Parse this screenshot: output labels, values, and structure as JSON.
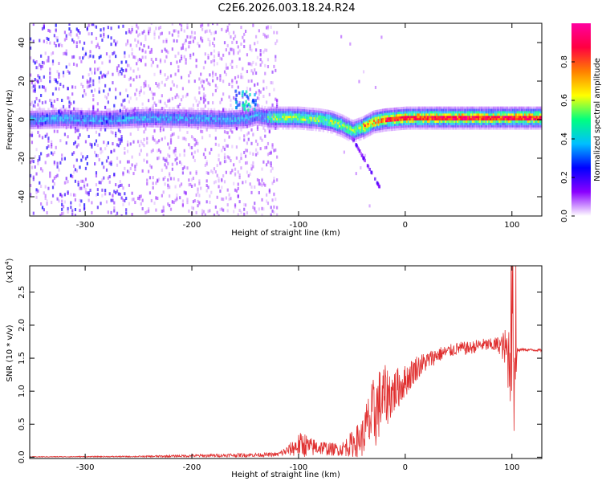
{
  "title": "C2E6.2026.003.18.24.R24",
  "chart_data": [
    {
      "type": "heatmap",
      "name": "spectrogram",
      "xlabel": "Height of straight line (km)",
      "ylabel": "Frequency (Hz)",
      "xlim": [
        -352,
        128
      ],
      "ylim": [
        -50,
        50
      ],
      "xticks": [
        -300,
        -200,
        -100,
        0,
        100
      ],
      "yticks": [
        -40,
        -20,
        0,
        20,
        40
      ],
      "ridge": {
        "x": [
          -352,
          -320,
          -280,
          -240,
          -200,
          -170,
          -150,
          -140,
          -130,
          -100,
          -80,
          -70,
          -60,
          -50,
          -40,
          -30,
          -20,
          0,
          20,
          50,
          80,
          95,
          100,
          110,
          128
        ],
        "freq": [
          0,
          0.5,
          0,
          1,
          0.5,
          0,
          0.5,
          2,
          1,
          1,
          0,
          -1,
          -3,
          -6,
          -4,
          -1,
          0,
          1,
          1,
          1,
          1,
          1,
          1,
          1,
          1
        ]
      },
      "features": [
        {
          "label": "burst",
          "x": [
            -160,
            -140
          ],
          "freq": [
            5,
            15
          ]
        },
        {
          "label": "diagonal",
          "x": [
            -50,
            -25
          ],
          "freq": [
            -10,
            -35
          ]
        }
      ],
      "colorbar": {
        "label": "Normalized spectral amplitude",
        "range": [
          0,
          1
        ],
        "ticks": [
          "0.0",
          "0.2",
          "0.4",
          "0.6",
          "0.8"
        ],
        "colors": [
          "#ffffff",
          "#8a00ff",
          "#0000ff",
          "#00bfff",
          "#00ff80",
          "#ffff00",
          "#ff8000",
          "#ff0040",
          "#ff00a0"
        ]
      }
    },
    {
      "type": "line",
      "name": "snr",
      "xlabel": "Height of straight line (km)",
      "ylabel": "SNR (10 * v/v)",
      "multiplier": "(x10",
      "multiplier_exp": "4",
      "xlim": [
        -352,
        128
      ],
      "ylim": [
        -0.02,
        2.9
      ],
      "xticks": [
        -300,
        -200,
        -100,
        0,
        100
      ],
      "yticks": [
        "0.0",
        "0.5",
        "1.0",
        "1.5",
        "2.0",
        "2.5"
      ],
      "color": "#e03030",
      "envelope": {
        "x": [
          -352,
          -250,
          -200,
          -160,
          -120,
          -110,
          -100,
          -95,
          -90,
          -80,
          -70,
          -60,
          -50,
          -40,
          -35,
          -30,
          -25,
          -20,
          -10,
          0,
          10,
          20,
          30,
          40,
          50,
          60,
          70,
          80,
          90,
          95,
          100,
          102,
          105,
          110,
          128
        ],
        "center": [
          0.005,
          0.01,
          0.02,
          0.03,
          0.04,
          0.1,
          0.18,
          0.2,
          0.15,
          0.15,
          0.12,
          0.12,
          0.2,
          0.3,
          0.5,
          0.6,
          0.8,
          0.9,
          1.0,
          1.15,
          1.35,
          1.45,
          1.55,
          1.6,
          1.65,
          1.65,
          1.7,
          1.7,
          1.7,
          1.6,
          1.4,
          1.0,
          1.62,
          1.63,
          1.62
        ],
        "spread": [
          0.005,
          0.01,
          0.02,
          0.03,
          0.03,
          0.08,
          0.18,
          0.2,
          0.15,
          0.12,
          0.1,
          0.1,
          0.2,
          0.3,
          0.45,
          0.6,
          0.55,
          0.5,
          0.35,
          0.25,
          0.2,
          0.15,
          0.12,
          0.1,
          0.1,
          0.1,
          0.1,
          0.1,
          0.15,
          0.4,
          0.9,
          1.0,
          0.05,
          0.02,
          0.02
        ]
      }
    }
  ]
}
